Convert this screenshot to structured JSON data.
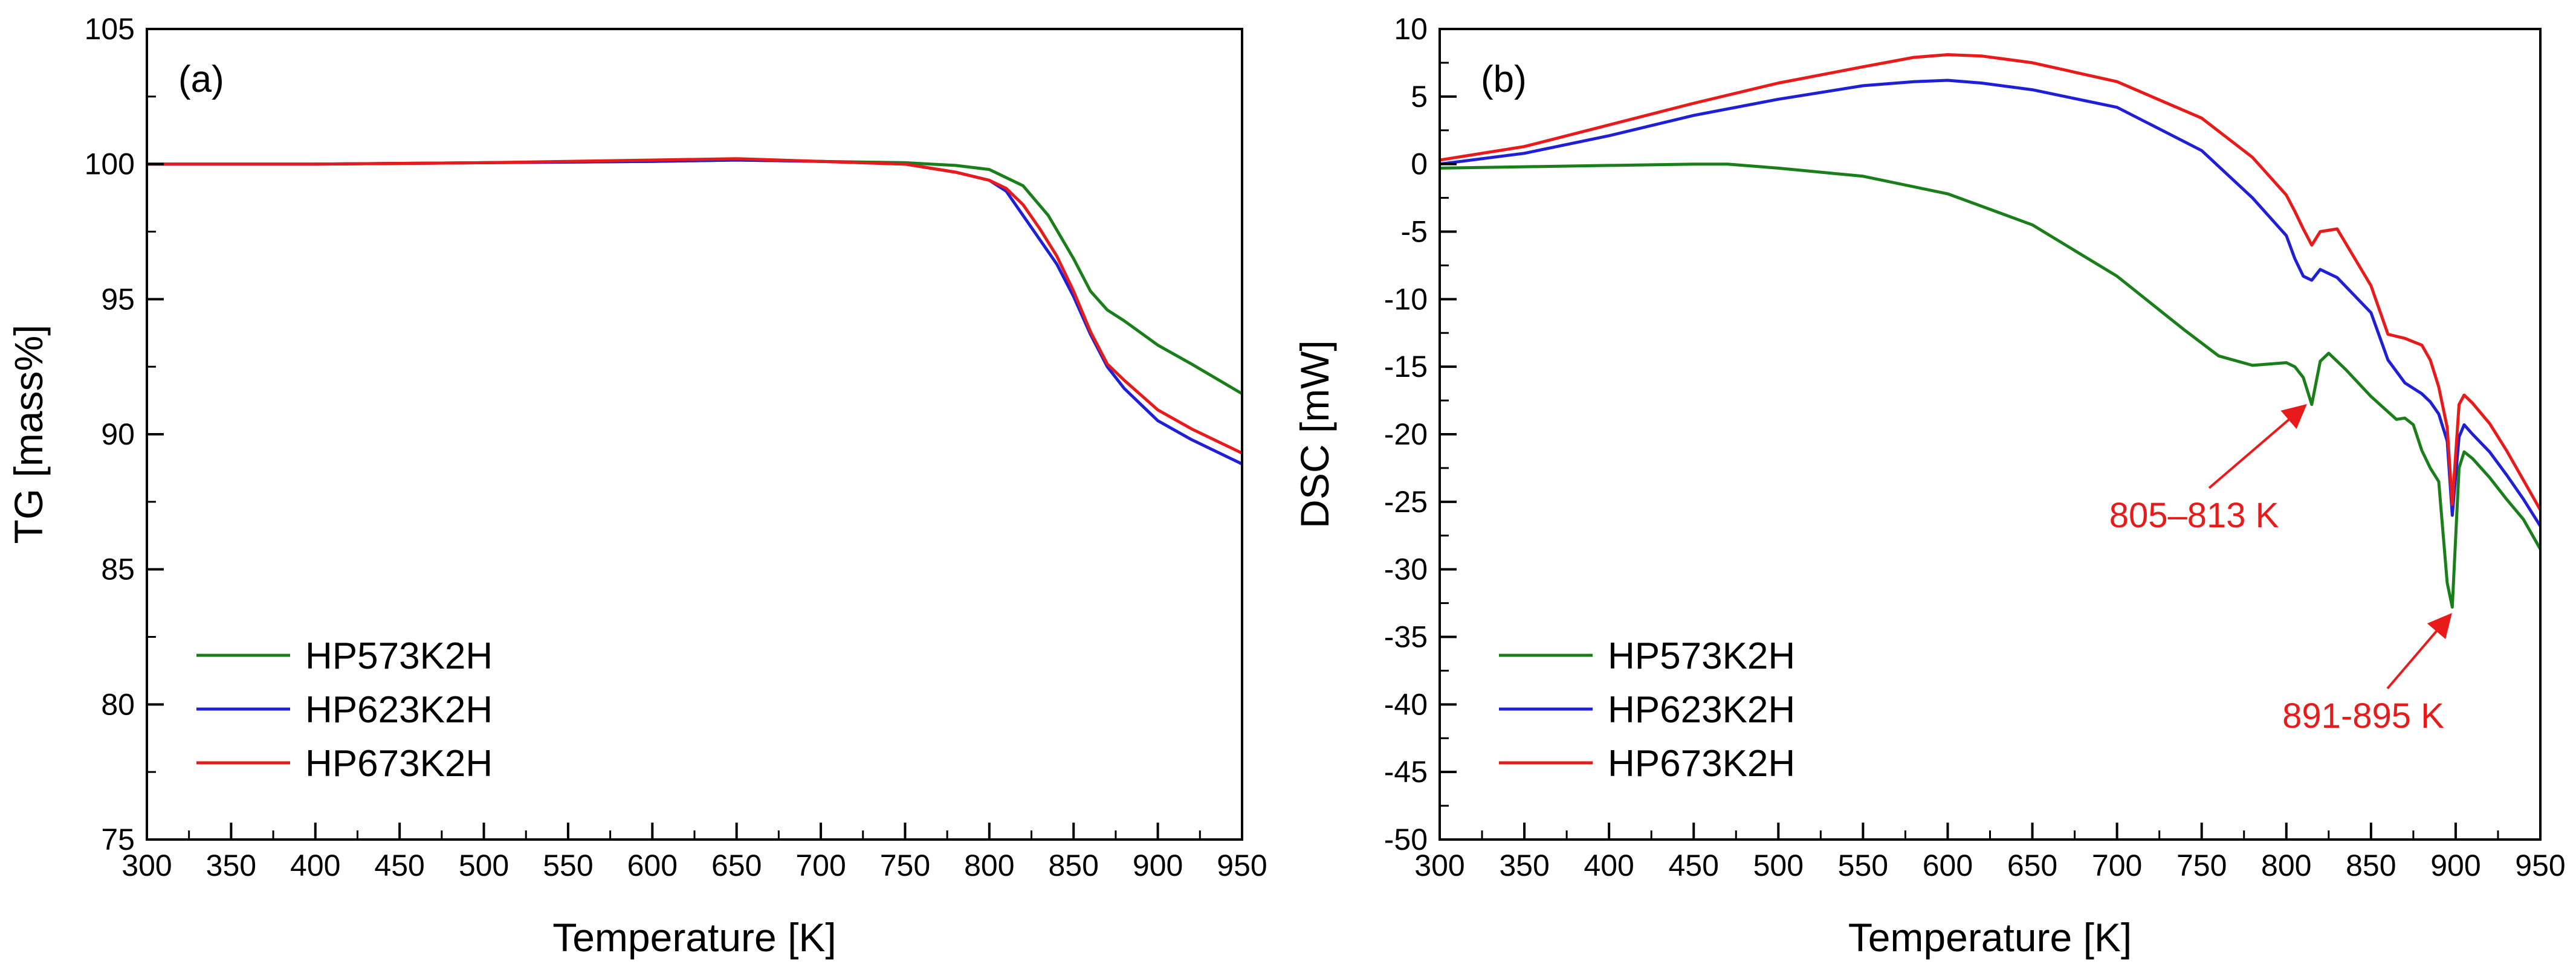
{
  "chart_data": [
    {
      "type": "line",
      "panel": "(a)",
      "xlabel": "Temperature [K]",
      "ylabel": "TG [mass%]",
      "xlim": [
        300,
        950
      ],
      "ylim": [
        75,
        105
      ],
      "x_ticks": [
        300,
        350,
        400,
        450,
        500,
        550,
        600,
        650,
        700,
        750,
        800,
        850,
        900,
        950
      ],
      "y_ticks": [
        75,
        80,
        85,
        90,
        95,
        100,
        105
      ],
      "legend_position": "bottom-left",
      "series": [
        {
          "name": "HP573K2H",
          "color": "#1a7f1a",
          "x": [
            300,
            400,
            500,
            600,
            650,
            700,
            750,
            780,
            800,
            820,
            835,
            850,
            860,
            870,
            880,
            900,
            920,
            950
          ],
          "y": [
            100,
            100,
            100.05,
            100.1,
            100.15,
            100.1,
            100.05,
            99.95,
            99.8,
            99.2,
            98.1,
            96.5,
            95.3,
            94.6,
            94.2,
            93.3,
            92.6,
            91.5
          ]
        },
        {
          "name": "HP623K2H",
          "color": "#1f1fd6",
          "x": [
            300,
            400,
            500,
            600,
            650,
            700,
            750,
            780,
            800,
            810,
            820,
            830,
            840,
            850,
            860,
            870,
            880,
            900,
            920,
            950
          ],
          "y": [
            100,
            100,
            100.05,
            100.1,
            100.15,
            100.1,
            100,
            99.7,
            99.4,
            99.0,
            98.1,
            97.2,
            96.3,
            95.1,
            93.7,
            92.5,
            91.7,
            90.5,
            89.8,
            88.9
          ]
        },
        {
          "name": "HP673K2H",
          "color": "#e81a1a",
          "x": [
            300,
            400,
            500,
            600,
            650,
            700,
            750,
            780,
            800,
            810,
            820,
            830,
            840,
            850,
            860,
            870,
            880,
            900,
            920,
            950
          ],
          "y": [
            100,
            100,
            100.05,
            100.15,
            100.2,
            100.1,
            100,
            99.7,
            99.4,
            99.1,
            98.5,
            97.6,
            96.6,
            95.3,
            93.8,
            92.6,
            92.0,
            90.9,
            90.2,
            89.3
          ]
        }
      ],
      "annotations": []
    },
    {
      "type": "line",
      "panel": "(b)",
      "xlabel": "Temperature [K]",
      "ylabel": "DSC [mW]",
      "xlim": [
        300,
        950
      ],
      "ylim": [
        -50,
        10
      ],
      "x_ticks": [
        300,
        350,
        400,
        450,
        500,
        550,
        600,
        650,
        700,
        750,
        800,
        850,
        900,
        950
      ],
      "y_ticks": [
        -50,
        -45,
        -40,
        -35,
        -30,
        -25,
        -20,
        -15,
        -10,
        -5,
        0,
        5,
        10
      ],
      "legend_position": "bottom-left",
      "series": [
        {
          "name": "HP573K2H",
          "color": "#1a7f1a",
          "x": [
            300,
            350,
            400,
            450,
            470,
            500,
            550,
            600,
            650,
            700,
            740,
            760,
            780,
            800,
            805,
            810,
            815,
            820,
            825,
            835,
            850,
            865,
            870,
            875,
            880,
            885,
            890,
            895,
            898,
            902,
            905,
            910,
            920,
            930,
            940,
            950
          ],
          "y": [
            -0.3,
            -0.2,
            -0.1,
            0,
            0,
            -0.3,
            -0.9,
            -2.2,
            -4.5,
            -8.3,
            -12.3,
            -14.2,
            -14.9,
            -14.7,
            -15.0,
            -15.8,
            -17.8,
            -14.6,
            -14.0,
            -15.2,
            -17.2,
            -18.9,
            -18.8,
            -19.3,
            -21.2,
            -22.5,
            -23.5,
            -31,
            -32.8,
            -22.5,
            -21.3,
            -21.8,
            -23.2,
            -24.8,
            -26.3,
            -28.5
          ]
        },
        {
          "name": "HP623K2H",
          "color": "#1f1fd6",
          "x": [
            300,
            350,
            400,
            450,
            500,
            550,
            580,
            600,
            620,
            650,
            700,
            750,
            780,
            800,
            805,
            810,
            815,
            820,
            830,
            850,
            860,
            870,
            880,
            885,
            890,
            895,
            898,
            902,
            905,
            910,
            920,
            930,
            940,
            950
          ],
          "y": [
            0,
            0.8,
            2.1,
            3.6,
            4.8,
            5.8,
            6.1,
            6.2,
            6.0,
            5.5,
            4.2,
            1.0,
            -2.5,
            -5.3,
            -7.0,
            -8.3,
            -8.6,
            -7.8,
            -8.4,
            -11.0,
            -14.5,
            -16.2,
            -17.0,
            -17.6,
            -18.5,
            -20.5,
            -26.0,
            -20.2,
            -19.3,
            -20.0,
            -21.3,
            -23.0,
            -24.8,
            -26.8
          ]
        },
        {
          "name": "HP673K2H",
          "color": "#e81a1a",
          "x": [
            300,
            350,
            400,
            450,
            500,
            550,
            580,
            600,
            620,
            650,
            700,
            750,
            780,
            800,
            805,
            810,
            815,
            820,
            830,
            850,
            860,
            870,
            880,
            885,
            890,
            895,
            898,
            902,
            905,
            910,
            920,
            930,
            940,
            950
          ],
          "y": [
            0.3,
            1.3,
            2.9,
            4.5,
            6.0,
            7.2,
            7.9,
            8.1,
            8.0,
            7.5,
            6.1,
            3.4,
            0.5,
            -2.3,
            -3.5,
            -4.8,
            -6.0,
            -5.0,
            -4.8,
            -9.0,
            -12.6,
            -12.9,
            -13.4,
            -14.5,
            -16.5,
            -19.5,
            -25.2,
            -17.8,
            -17.1,
            -17.7,
            -19.2,
            -21.2,
            -23.4,
            -25.6
          ]
        }
      ],
      "annotations": [
        {
          "text": "805–813 K",
          "color": "#e81a1a",
          "point_to": [
            810,
            -18.0
          ]
        },
        {
          "text": "891-895 K",
          "color": "#e81a1a",
          "point_to": [
            896,
            -33.5
          ]
        }
      ]
    }
  ]
}
